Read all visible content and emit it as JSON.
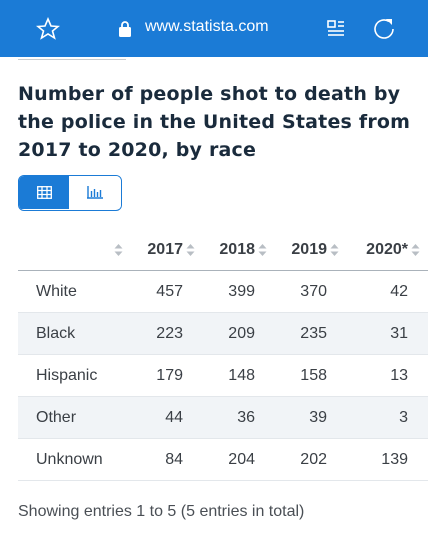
{
  "browser": {
    "url": "www.statista.com"
  },
  "title": "Number of people shot to death by the police in the United States from 2017 to 2020, by race",
  "table": {
    "columns": [
      "2017",
      "2018",
      "2019",
      "2020*"
    ],
    "rows": [
      [
        "White",
        457,
        399,
        370,
        42
      ],
      [
        "Black",
        223,
        209,
        235,
        31
      ],
      [
        "Hispanic",
        179,
        148,
        158,
        13
      ],
      [
        "Other",
        44,
        36,
        39,
        3
      ],
      [
        "Unknown",
        84,
        204,
        202,
        139
      ]
    ]
  },
  "footer": "Showing entries 1 to 5 (5 entries in total)"
}
